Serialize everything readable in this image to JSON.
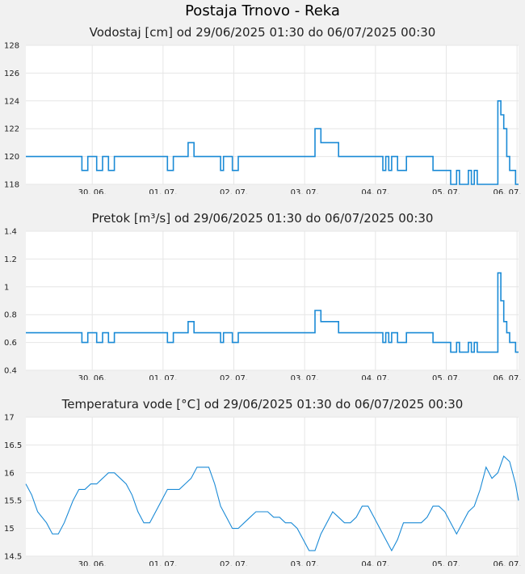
{
  "page_title": "Postaja Trnovo - Reka",
  "chart_data": [
    {
      "type": "line",
      "title": "Vodostaj [cm] od 29/06/2025 01:30 do 06/07/2025 00:30",
      "ylim": [
        118,
        128
      ],
      "yticks": [
        "118",
        "120",
        "122",
        "124",
        "126",
        "128"
      ],
      "xticks": [
        "30. 06.",
        "01. 07.",
        "02. 07.",
        "03. 07.",
        "04. 07.",
        "05. 07.",
        "06. 07."
      ],
      "grid": true,
      "color": "#1a8ad6",
      "series": [
        {
          "x": [
            0,
            6,
            15,
            19,
            21,
            22,
            24,
            26,
            28,
            30,
            33,
            36,
            41,
            46,
            48,
            50,
            52,
            55,
            57,
            60,
            64,
            66,
            67,
            69,
            70,
            72,
            75,
            80,
            91,
            97,
            98,
            100,
            102,
            104,
            106,
            108,
            112,
            117,
            120,
            121,
            122,
            123,
            124,
            126,
            129,
            134,
            138,
            140,
            142,
            144,
            145,
            146,
            147,
            148,
            149,
            150,
            151,
            152,
            153,
            154,
            155,
            156,
            157,
            158,
            159,
            160,
            161,
            162,
            163,
            164,
            165,
            166,
            167
          ],
          "y": [
            120,
            120,
            120,
            119,
            120,
            120,
            119,
            120,
            119,
            120,
            120,
            120,
            120,
            120,
            119,
            120,
            120,
            121,
            120,
            120,
            120,
            119,
            120,
            120,
            119,
            120,
            120,
            120,
            120,
            120,
            122,
            121,
            121,
            121,
            120,
            120,
            120,
            120,
            120,
            119,
            120,
            119,
            120,
            119,
            120,
            120,
            119,
            119,
            119,
            118,
            118,
            119,
            118,
            118,
            118,
            119,
            118,
            119,
            118,
            118,
            118,
            118,
            118,
            118,
            118,
            124,
            123,
            122,
            120,
            119,
            119,
            118,
            118
          ]
        }
      ]
    },
    {
      "type": "line",
      "title": "Pretok [m³/s] od 29/06/2025 01:30 do 06/07/2025 00:30",
      "ylim": [
        0.4,
        1.4
      ],
      "yticks": [
        "0.4",
        "0.6",
        "0.8",
        "1",
        "1.2",
        "1.4"
      ],
      "xticks": [
        "30. 06.",
        "01. 07.",
        "02. 07.",
        "03. 07.",
        "04. 07.",
        "05. 07.",
        "06. 07."
      ],
      "grid": true,
      "color": "#1a8ad6",
      "series": [
        {
          "x": [
            0,
            6,
            15,
            19,
            21,
            22,
            24,
            26,
            28,
            30,
            33,
            36,
            41,
            46,
            48,
            50,
            52,
            55,
            57,
            60,
            64,
            66,
            67,
            69,
            70,
            72,
            75,
            80,
            91,
            97,
            98,
            100,
            102,
            104,
            106,
            108,
            112,
            117,
            120,
            121,
            122,
            123,
            124,
            126,
            129,
            134,
            138,
            140,
            142,
            144,
            145,
            146,
            147,
            148,
            149,
            150,
            151,
            152,
            153,
            154,
            155,
            156,
            157,
            158,
            159,
            160,
            161,
            162,
            163,
            164,
            165,
            166,
            167
          ],
          "y": [
            0.67,
            0.67,
            0.67,
            0.6,
            0.67,
            0.67,
            0.6,
            0.67,
            0.6,
            0.67,
            0.67,
            0.67,
            0.67,
            0.67,
            0.6,
            0.67,
            0.67,
            0.75,
            0.67,
            0.67,
            0.67,
            0.6,
            0.67,
            0.67,
            0.6,
            0.67,
            0.67,
            0.67,
            0.67,
            0.67,
            0.83,
            0.75,
            0.75,
            0.75,
            0.67,
            0.67,
            0.67,
            0.67,
            0.67,
            0.6,
            0.67,
            0.6,
            0.67,
            0.6,
            0.67,
            0.67,
            0.6,
            0.6,
            0.6,
            0.53,
            0.53,
            0.6,
            0.53,
            0.53,
            0.53,
            0.6,
            0.53,
            0.6,
            0.53,
            0.53,
            0.53,
            0.53,
            0.53,
            0.53,
            0.53,
            1.1,
            0.9,
            0.75,
            0.67,
            0.6,
            0.6,
            0.53,
            0.53
          ]
        }
      ]
    },
    {
      "type": "line",
      "title": "Temperatura vode [°C] od 29/06/2025 01:30 do 06/07/2025 00:30",
      "ylim": [
        14.5,
        17
      ],
      "yticks": [
        "14.5",
        "15",
        "15.5",
        "16",
        "16.5",
        "17"
      ],
      "xticks": [
        "30. 06.",
        "01. 07.",
        "02. 07.",
        "03. 07.",
        "04. 07.",
        "05. 07.",
        "06. 07."
      ],
      "grid": true,
      "color": "#1a8ad6",
      "series": [
        {
          "x": [
            0,
            2,
            4,
            7,
            9,
            11,
            13,
            16,
            18,
            20,
            22,
            24,
            26,
            28,
            30,
            32,
            34,
            36,
            38,
            40,
            42,
            44,
            46,
            48,
            50,
            52,
            54,
            56,
            58,
            60,
            62,
            64,
            66,
            68,
            70,
            72,
            74,
            76,
            78,
            80,
            82,
            84,
            86,
            88,
            90,
            92,
            94,
            96,
            98,
            100,
            102,
            104,
            106,
            108,
            110,
            112,
            114,
            116,
            118,
            120,
            122,
            124,
            126,
            128,
            130,
            132,
            134,
            136,
            138,
            140,
            142,
            144,
            146,
            148,
            150,
            152,
            154,
            156,
            158,
            160,
            162,
            164,
            166,
            167
          ],
          "y": [
            15.8,
            15.6,
            15.3,
            15.1,
            14.9,
            14.9,
            15.1,
            15.5,
            15.7,
            15.7,
            15.8,
            15.8,
            15.9,
            16,
            16,
            15.9,
            15.8,
            15.6,
            15.3,
            15.1,
            15.1,
            15.3,
            15.5,
            15.7,
            15.7,
            15.7,
            15.8,
            15.9,
            16.1,
            16.1,
            16.1,
            15.8,
            15.4,
            15.2,
            15,
            15,
            15.1,
            15.2,
            15.3,
            15.3,
            15.3,
            15.2,
            15.2,
            15.1,
            15.1,
            15,
            14.8,
            14.6,
            14.6,
            14.9,
            15.1,
            15.3,
            15.2,
            15.1,
            15.1,
            15.2,
            15.4,
            15.4,
            15.2,
            15,
            14.8,
            14.6,
            14.8,
            15.1,
            15.1,
            15.1,
            15.1,
            15.2,
            15.4,
            15.4,
            15.3,
            15.1,
            14.9,
            15.1,
            15.3,
            15.4,
            15.7,
            16.1,
            15.9,
            16,
            16.3,
            16.2,
            15.8,
            15.5
          ]
        }
      ]
    }
  ]
}
